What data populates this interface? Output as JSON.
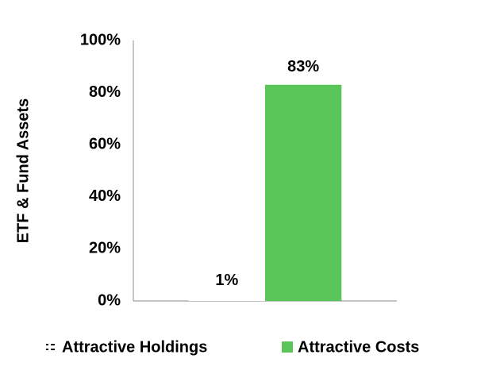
{
  "chart_data": {
    "type": "bar",
    "y_label": "ETF & Fund Assets",
    "categories": [
      null
    ],
    "series": [
      {
        "name": "Attractive Holdings",
        "color": "#000000",
        "pattern": "hatched",
        "values": [
          1
        ],
        "value_labels": [
          "1%"
        ]
      },
      {
        "name": "Attractive Costs",
        "color": "#5ac65a",
        "values": [
          83
        ],
        "value_labels": [
          "83%"
        ]
      }
    ],
    "ylim": [
      0,
      100
    ],
    "yticks": [
      {
        "value": 0,
        "label": "0%"
      },
      {
        "value": 20,
        "label": "20%"
      },
      {
        "value": 40,
        "label": "40%"
      },
      {
        "value": 60,
        "label": "60%"
      },
      {
        "value": 80,
        "label": "80%"
      },
      {
        "value": 100,
        "label": "100%"
      }
    ],
    "grid": false,
    "legend": "bottom"
  }
}
